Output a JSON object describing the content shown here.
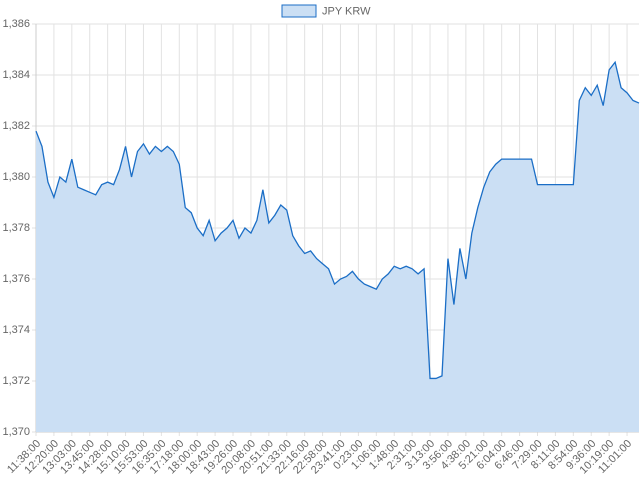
{
  "chart_data": {
    "type": "area",
    "categories": [
      "11:38:00",
      null,
      null,
      "12:20:00",
      null,
      null,
      "13:03:00",
      null,
      null,
      "13:45:00",
      null,
      null,
      "14:28:00",
      null,
      null,
      "15:10:00",
      null,
      null,
      "15:53:00",
      null,
      null,
      "16:35:00",
      null,
      null,
      "17:18:00",
      null,
      null,
      "18:00:00",
      null,
      null,
      "18:43:00",
      null,
      null,
      "19:26:00",
      null,
      null,
      "20:08:00",
      null,
      null,
      "20:51:00",
      null,
      null,
      "21:33:00",
      null,
      null,
      "22:16:00",
      null,
      null,
      "22:58:00",
      null,
      null,
      "23:41:00",
      null,
      null,
      "0:23:00",
      null,
      null,
      "1:06:00",
      null,
      null,
      "1:48:00",
      null,
      null,
      "2:31:00",
      null,
      null,
      "3:13:00",
      null,
      null,
      "3:56:00",
      null,
      null,
      "4:38:00",
      null,
      null,
      "5:21:00",
      null,
      null,
      "6:04:00",
      null,
      null,
      "6:46:00",
      null,
      null,
      "7:29:00",
      null,
      null,
      "8:11:00",
      null,
      null,
      "8:54:00",
      null,
      null,
      "9:36:00",
      null,
      null,
      "10:19:00",
      null,
      null,
      "11:01:00",
      null,
      null
    ],
    "series": [
      {
        "name": "JPY KRW",
        "color": "#1b6ec6",
        "fill": "#cbdff4",
        "values": [
          1381.8,
          1381.2,
          1379.8,
          1379.2,
          1380.0,
          1379.8,
          1380.7,
          1379.6,
          1379.5,
          1379.4,
          1379.3,
          1379.7,
          1379.8,
          1379.7,
          1380.3,
          1381.2,
          1380.0,
          1381.0,
          1381.3,
          1380.9,
          1381.2,
          1381.0,
          1381.2,
          1381.0,
          1380.5,
          1378.8,
          1378.6,
          1378.0,
          1377.7,
          1378.3,
          1377.5,
          1377.8,
          1378.0,
          1378.3,
          1377.6,
          1378.0,
          1377.8,
          1378.3,
          1379.5,
          1378.2,
          1378.5,
          1378.9,
          1378.7,
          1377.7,
          1377.3,
          1377.0,
          1377.1,
          1376.8,
          1376.6,
          1376.4,
          1375.8,
          1376.0,
          1376.1,
          1376.3,
          1376.0,
          1375.8,
          1375.7,
          1375.6,
          1376.0,
          1376.2,
          1376.5,
          1376.4,
          1376.5,
          1376.4,
          1376.2,
          1376.4,
          1372.1,
          1372.1,
          1372.2,
          1376.8,
          1375.0,
          1377.2,
          1376.0,
          1377.8,
          1378.8,
          1379.6,
          1380.2,
          1380.5,
          1380.7,
          1380.7,
          1380.7,
          1380.7,
          1380.7,
          1380.7,
          1379.7,
          1379.7,
          1379.7,
          1379.7,
          1379.7,
          1379.7,
          1379.7,
          1383.0,
          1383.5,
          1383.2,
          1383.6,
          1382.8,
          1384.2,
          1384.5,
          1383.5,
          1383.3,
          1383.0,
          1382.9
        ]
      }
    ],
    "ylim": [
      1370,
      1386
    ],
    "yticks": [
      {
        "value": 1370,
        "label": "1,370"
      },
      {
        "value": 1372,
        "label": "1,372"
      },
      {
        "value": 1374,
        "label": "1,374"
      },
      {
        "value": 1376,
        "label": "1,376"
      },
      {
        "value": 1378,
        "label": "1,378"
      },
      {
        "value": 1380,
        "label": "1,380"
      },
      {
        "value": 1382,
        "label": "1,382"
      },
      {
        "value": 1384,
        "label": "1,384"
      },
      {
        "value": 1386,
        "label": "1,386"
      }
    ],
    "grid": true,
    "legend": "top"
  }
}
